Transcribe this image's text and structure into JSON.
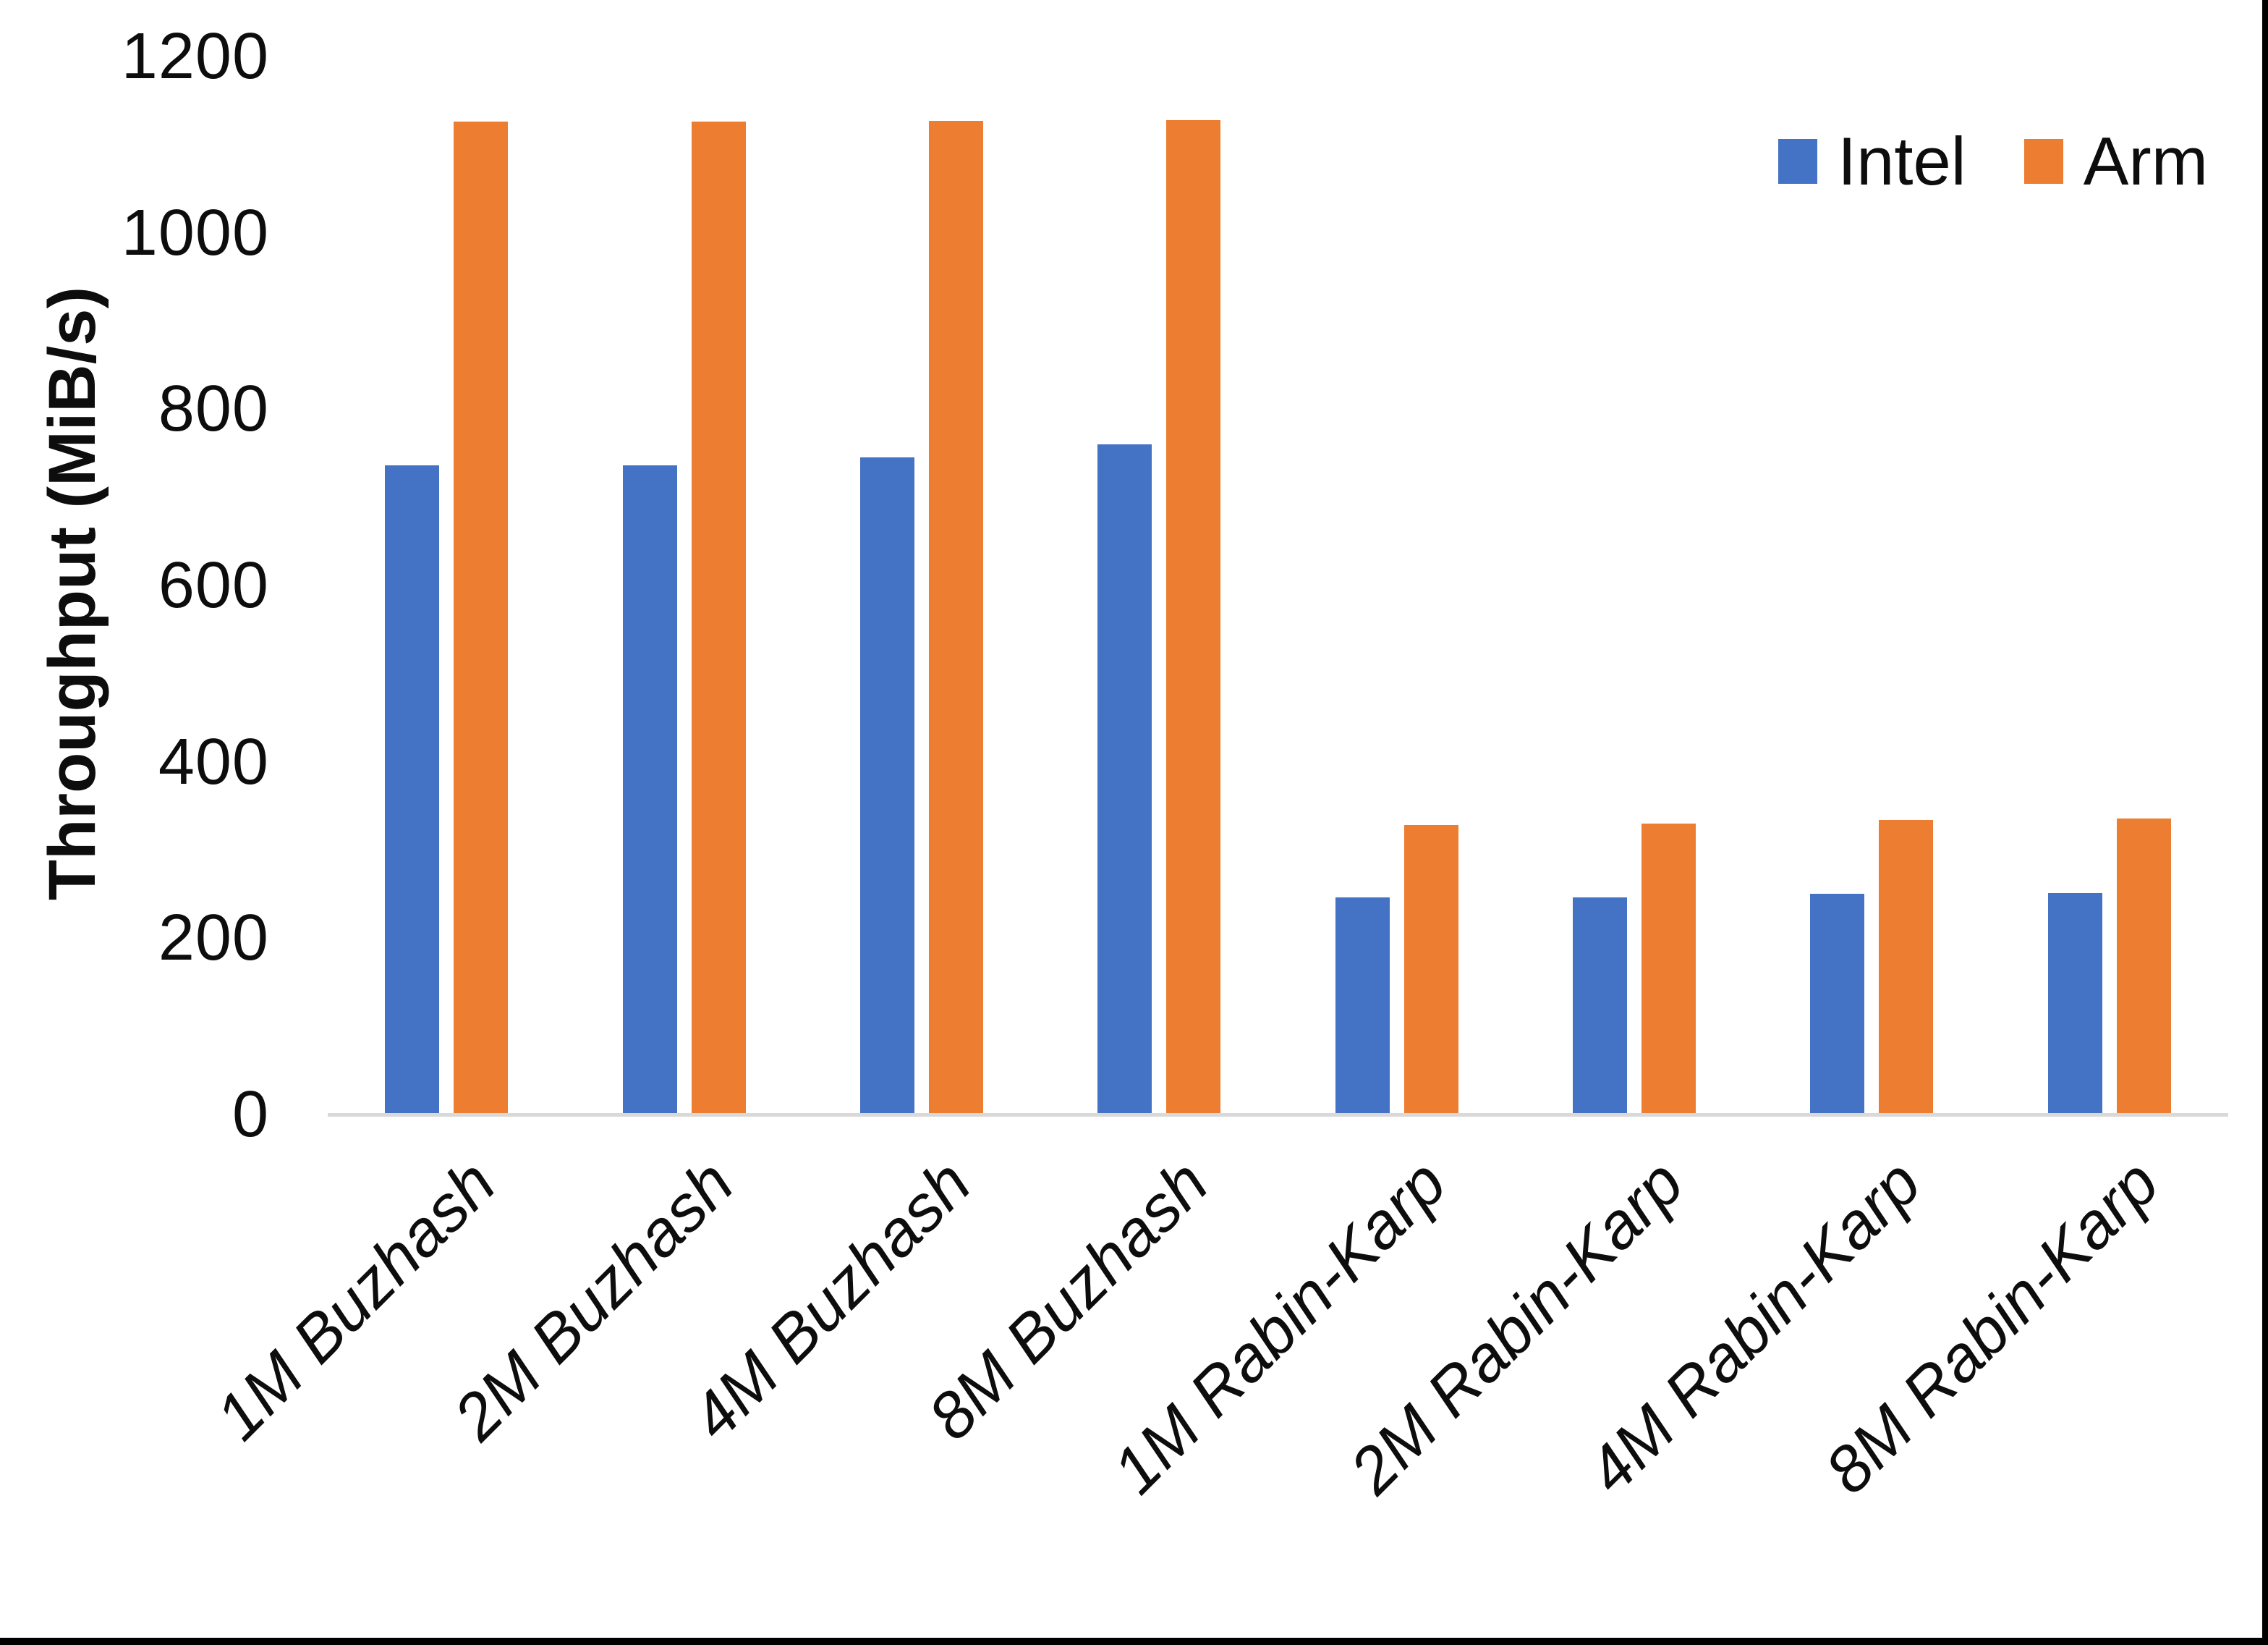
{
  "chart_data": {
    "type": "bar",
    "title": "",
    "y_axis_title": "Throughput (MiB/s)",
    "categories": [
      "1M Buzhash",
      "2M Buzhash",
      "4M Buzhash",
      "8M Buzhash",
      "1M Rabin-Karp",
      "2M Rabin-Karp",
      "4M Rabin-Karp",
      "8M Rabin-Karp"
    ],
    "series": [
      {
        "name": "Intel",
        "color": "#4472C4",
        "values": [
          736,
          736,
          745,
          760,
          246,
          246,
          250,
          251
        ]
      },
      {
        "name": "Arm",
        "color": "#ED7D31",
        "values": [
          1126,
          1126,
          1127,
          1128,
          328,
          330,
          334,
          336
        ]
      }
    ],
    "y_ticks": [
      0,
      200,
      400,
      600,
      800,
      1000,
      1200
    ],
    "ylim": [
      0,
      1200
    ],
    "grid": false,
    "legend_position": "top-right",
    "axis_line_color": "#D9D9D9",
    "bar_text_color": "#0d0d0d"
  }
}
